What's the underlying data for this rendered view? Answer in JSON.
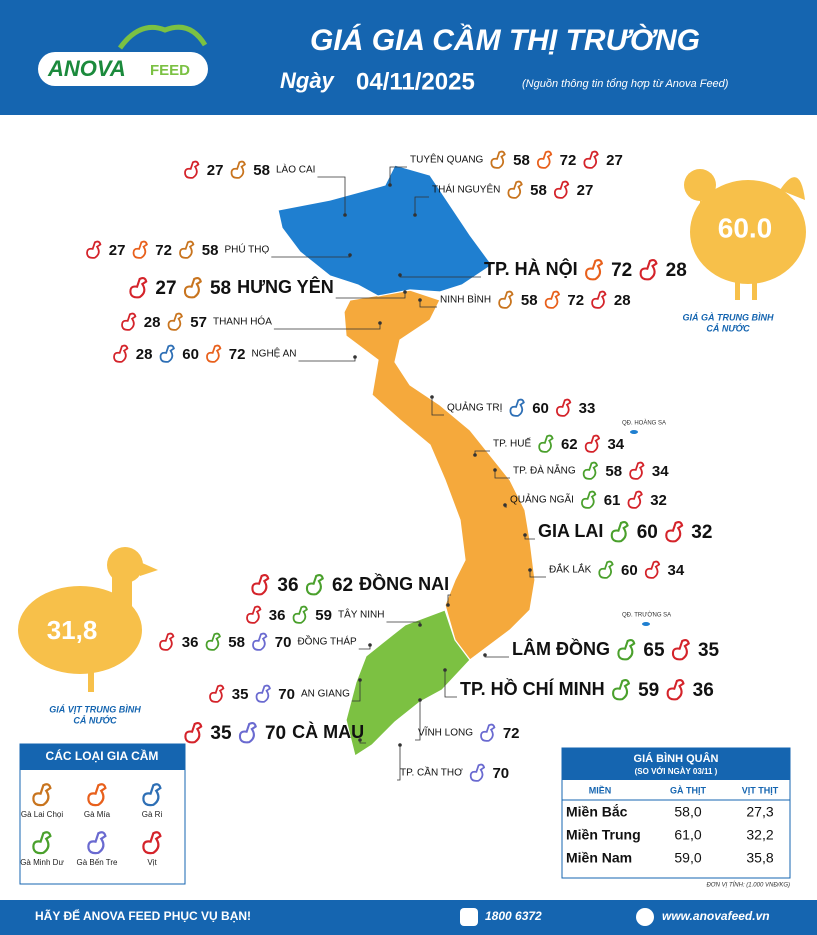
{
  "header": {
    "logo_main": "ANOVA",
    "logo_sub": "FEED",
    "title": "GIÁ GIA CẦM THỊ TRƯỜNG",
    "date_label": "Ngày",
    "date": "04/11/2025",
    "source": "(Nguồn thông tin tổng hợp từ Anova Feed)"
  },
  "chicken_average": {
    "value": "60.0",
    "label_line1": "GIÁ GÀ TRUNG BÌNH",
    "label_line2": "CẢ NƯỚC"
  },
  "duck_average": {
    "value": "31,8",
    "label_line1": "GIÁ VỊT TRUNG BÌNH",
    "label_line2": "CẢ NƯỚC"
  },
  "islands": [
    "QĐ. HOÀNG SA",
    "QĐ. TRƯỜNG SA"
  ],
  "legend": {
    "title": "CÁC LOẠI GIA CẦM",
    "items": [
      {
        "name": "Gà Lai Chọi",
        "color": "#c8741e"
      },
      {
        "name": "Gà Mía",
        "color": "#e8601c"
      },
      {
        "name": "Gà Ri",
        "color": "#2e6fb5"
      },
      {
        "name": "Gà Minh Dư",
        "color": "#4aa02c"
      },
      {
        "name": "Gà Bến Tre",
        "color": "#6a6ad0"
      },
      {
        "name": "Vịt",
        "color": "#d4232a"
      }
    ]
  },
  "provinces": [
    {
      "name": "LÀO CAI",
      "prices": [
        {
          "kind": 5,
          "value": 27
        },
        {
          "kind": 0,
          "value": 58
        }
      ]
    },
    {
      "name": "TUYÊN QUANG",
      "prices": [
        {
          "kind": 0,
          "value": 58
        },
        {
          "kind": 1,
          "value": 72
        },
        {
          "kind": 5,
          "value": 27
        }
      ]
    },
    {
      "name": "THÁI NGUYÊN",
      "prices": [
        {
          "kind": 0,
          "value": 58
        },
        {
          "kind": 5,
          "value": 27
        }
      ]
    },
    {
      "name": "PHÚ THỌ",
      "prices": [
        {
          "kind": 5,
          "value": 27
        },
        {
          "kind": 1,
          "value": 72
        },
        {
          "kind": 0,
          "value": 58
        }
      ]
    },
    {
      "name": "TP. HÀ NỘI",
      "prices": [
        {
          "kind": 1,
          "value": 72
        },
        {
          "kind": 5,
          "value": 28
        }
      ]
    },
    {
      "name": "HƯNG YÊN",
      "prices": [
        {
          "kind": 5,
          "value": 27
        },
        {
          "kind": 0,
          "value": 58
        }
      ]
    },
    {
      "name": "NINH BÌNH",
      "prices": [
        {
          "kind": 0,
          "value": 58
        },
        {
          "kind": 1,
          "value": 72
        },
        {
          "kind": 5,
          "value": 28
        }
      ]
    },
    {
      "name": "THANH HÓA",
      "prices": [
        {
          "kind": 5,
          "value": 28
        },
        {
          "kind": 0,
          "value": 57
        }
      ]
    },
    {
      "name": "NGHỆ AN",
      "prices": [
        {
          "kind": 5,
          "value": 28
        },
        {
          "kind": 2,
          "value": 60
        },
        {
          "kind": 1,
          "value": 72
        }
      ]
    },
    {
      "name": "QUẢNG TRỊ",
      "prices": [
        {
          "kind": 2,
          "value": 60
        },
        {
          "kind": 5,
          "value": 33
        }
      ]
    },
    {
      "name": "TP. HUẾ",
      "prices": [
        {
          "kind": 3,
          "value": 62
        },
        {
          "kind": 5,
          "value": 34
        }
      ]
    },
    {
      "name": "TP. ĐÀ NẴNG",
      "prices": [
        {
          "kind": 3,
          "value": 58
        },
        {
          "kind": 5,
          "value": 34
        }
      ]
    },
    {
      "name": "QUẢNG NGÃI",
      "prices": [
        {
          "kind": 3,
          "value": 61
        },
        {
          "kind": 5,
          "value": 32
        }
      ]
    },
    {
      "name": "GIA LAI",
      "prices": [
        {
          "kind": 3,
          "value": 60
        },
        {
          "kind": 5,
          "value": 32
        }
      ]
    },
    {
      "name": "ĐẮK LẮK",
      "prices": [
        {
          "kind": 3,
          "value": 60
        },
        {
          "kind": 5,
          "value": 34
        }
      ]
    },
    {
      "name": "ĐỒNG NAI",
      "prices": [
        {
          "kind": 5,
          "value": 36
        },
        {
          "kind": 3,
          "value": 62
        }
      ]
    },
    {
      "name": "TÂY NINH",
      "prices": [
        {
          "kind": 5,
          "value": 36
        },
        {
          "kind": 3,
          "value": 59
        }
      ]
    },
    {
      "name": "ĐỒNG THÁP",
      "prices": [
        {
          "kind": 5,
          "value": 36
        },
        {
          "kind": 3,
          "value": 58
        },
        {
          "kind": 4,
          "value": 70
        }
      ]
    },
    {
      "name": "LÂM ĐỒNG",
      "prices": [
        {
          "kind": 3,
          "value": 65
        },
        {
          "kind": 5,
          "value": 35
        }
      ]
    },
    {
      "name": "TP. HỒ CHÍ MINH",
      "prices": [
        {
          "kind": 3,
          "value": 59
        },
        {
          "kind": 5,
          "value": 36
        }
      ]
    },
    {
      "name": "AN GIANG",
      "prices": [
        {
          "kind": 5,
          "value": 35
        },
        {
          "kind": 4,
          "value": 70
        }
      ]
    },
    {
      "name": "CÀ MAU",
      "prices": [
        {
          "kind": 5,
          "value": 35
        },
        {
          "kind": 4,
          "value": 70
        }
      ]
    },
    {
      "name": "VĨNH LONG",
      "prices": [
        {
          "kind": 4,
          "value": 72
        }
      ]
    },
    {
      "name": "TP. CẦN THƠ",
      "prices": [
        {
          "kind": 4,
          "value": 70
        }
      ]
    }
  ],
  "average_table": {
    "title": "GIÁ BÌNH QUÂN",
    "subtitle": "(SO VỚI NGÀY 03/11 )",
    "columns": [
      "MIỀN",
      "GÀ THỊT",
      "VỊT THỊT"
    ],
    "rows": [
      [
        "Miền Bắc",
        "58,0",
        "27,3"
      ],
      [
        "Miền Trung",
        "61,0",
        "32,2"
      ],
      [
        "Miền Nam",
        "59,0",
        "35,8"
      ]
    ],
    "note": "ĐƠN VỊ TÍNH: (1.000 VNĐ/KG)"
  },
  "footer": {
    "slogan": "HÃY ĐỂ ANOVA FEED PHỤC VỤ BẠN!",
    "phone": "1800 6372",
    "website": "www.anovafeed.vn"
  }
}
